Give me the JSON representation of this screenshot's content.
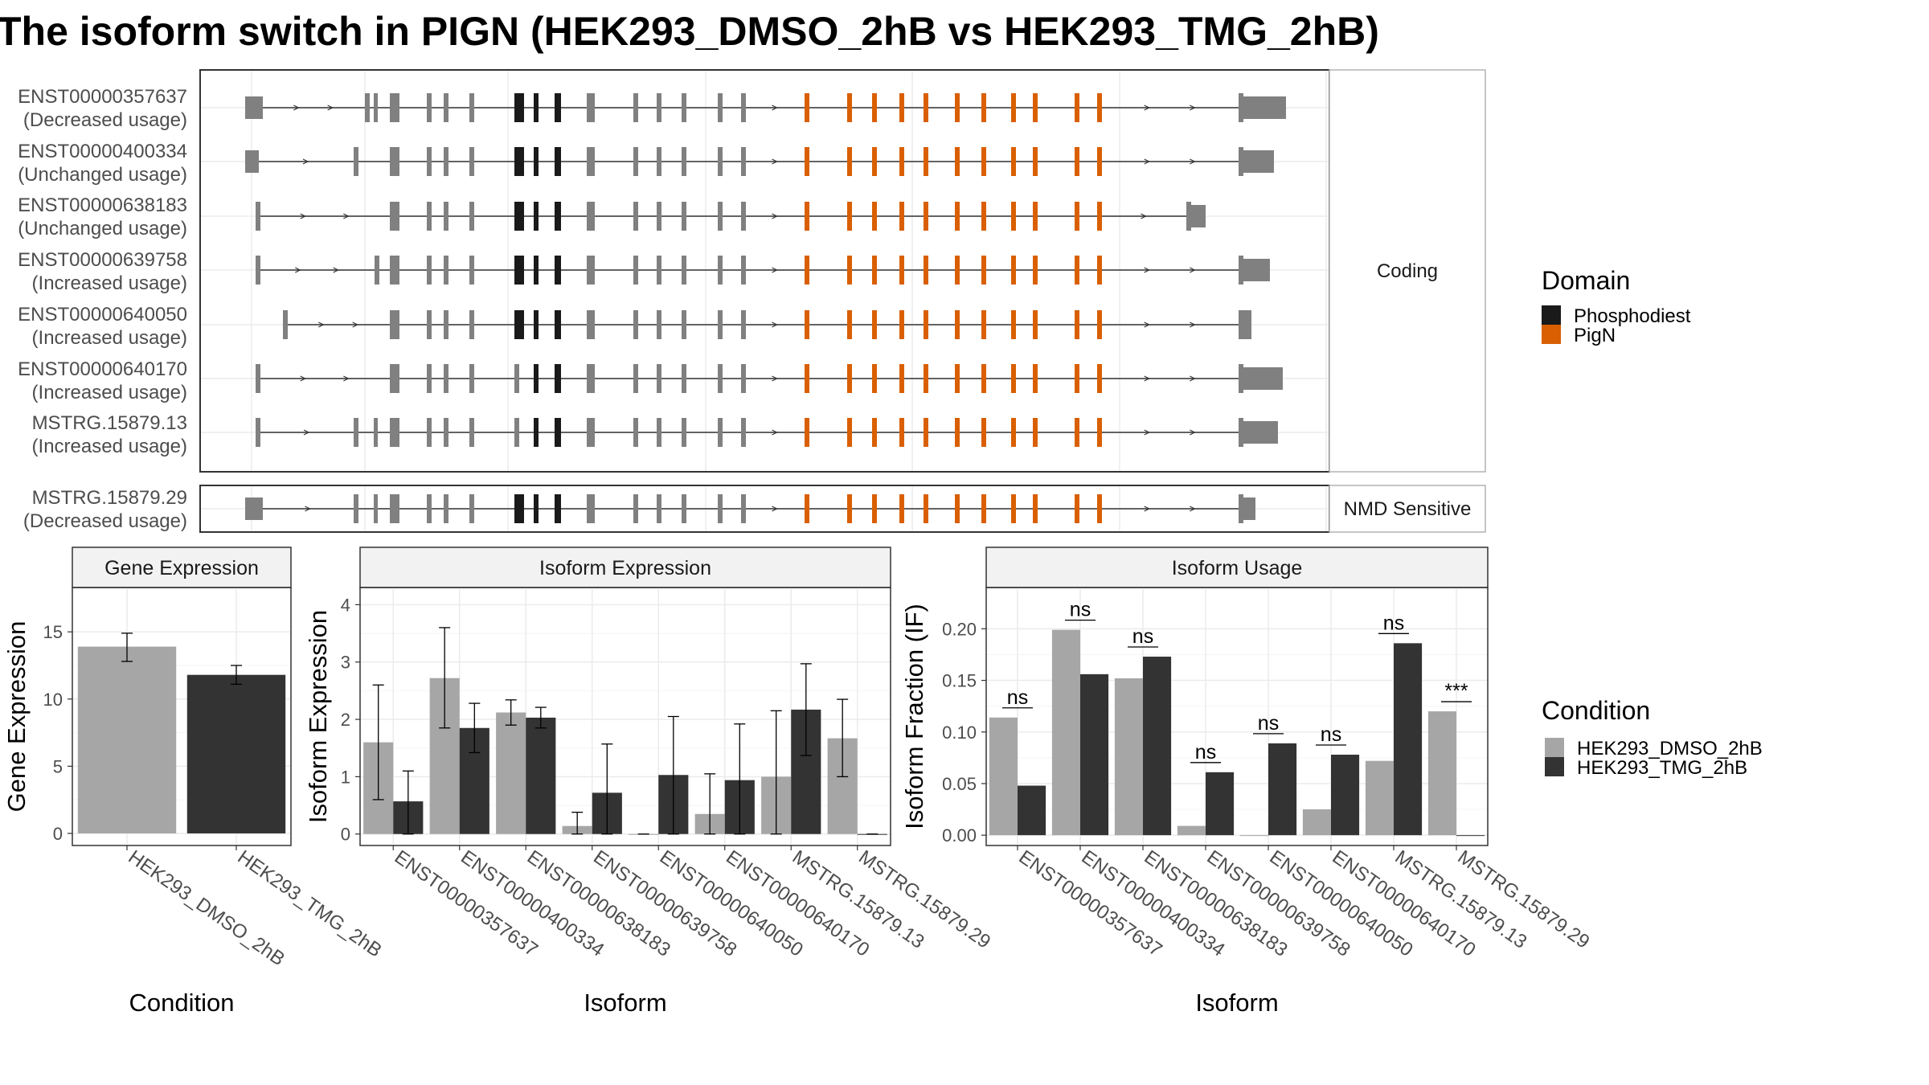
{
  "title": "The isoform switch in PIGN (HEK293_DMSO_2hB vs HEK293_TMG_2hB)",
  "colors": {
    "exon": "#808080",
    "phosphodiest": "#1a1a1a",
    "pign": "#d95f02",
    "dmso": "#a6a6a6",
    "tmg": "#333333",
    "grid": "#ebebeb",
    "strip_bg": "#f2f2f2",
    "panel_border": "#333333"
  },
  "structure_panels": [
    {
      "strip": "Coding",
      "isoform_indices": [
        0,
        1,
        2,
        3,
        4,
        5,
        6
      ]
    },
    {
      "strip": "NMD Sensitive",
      "isoform_indices": [
        7
      ]
    }
  ],
  "isoforms": [
    {
      "id": "ENST00000357637",
      "usage": "(Decreased usage)"
    },
    {
      "id": "ENST00000400334",
      "usage": "(Unchanged usage)"
    },
    {
      "id": "ENST00000638183",
      "usage": "(Unchanged usage)"
    },
    {
      "id": "ENST00000639758",
      "usage": "(Increased usage)"
    },
    {
      "id": "ENST00000640050",
      "usage": "(Increased usage)"
    },
    {
      "id": "ENST00000640170",
      "usage": "(Increased usage)"
    },
    {
      "id": "MSTRG.15879.13",
      "usage": "(Increased usage)"
    },
    {
      "id": "MSTRG.15879.29",
      "usage": "(Decreased usage)"
    }
  ],
  "domain_legend": {
    "title": "Domain",
    "items": [
      {
        "label": "Phosphodiest",
        "color": "#1a1a1a"
      },
      {
        "label": "PigN",
        "color": "#d95f02"
      }
    ]
  },
  "condition_legend": {
    "title": "Condition",
    "items": [
      {
        "label": "HEK293_DMSO_2hB",
        "color": "#a6a6a6"
      },
      {
        "label": "HEK293_TMG_2hB",
        "color": "#333333"
      }
    ]
  },
  "chart_data": [
    {
      "type": "bar",
      "title": "Gene Expression",
      "xlabel": "Condition",
      "ylabel": "Gene Expression",
      "categories": [
        "HEK293_DMSO_2hB",
        "HEK293_TMG_2hB"
      ],
      "values": [
        13.9,
        11.8
      ],
      "error_low": [
        12.8,
        11.1
      ],
      "error_high": [
        14.9,
        12.5
      ],
      "colors": [
        "#a6a6a6",
        "#333333"
      ],
      "yticks": [
        "0",
        "5",
        "10",
        "15"
      ],
      "ylim": [
        -0.9,
        18.3
      ]
    },
    {
      "type": "bar",
      "title": "Isoform Expression",
      "xlabel": "Isoform",
      "ylabel": "Isoform Expression",
      "categories": [
        "ENST00000357637",
        "ENST00000400334",
        "ENST00000638183",
        "ENST00000639758",
        "ENST00000640050",
        "ENST00000640170",
        "MSTRG.15879.13",
        "MSTRG.15879.29"
      ],
      "yticks": [
        "0",
        "1",
        "2",
        "3",
        "4"
      ],
      "ylim": [
        -0.2,
        4.3
      ],
      "series": [
        {
          "name": "HEK293_DMSO_2hB",
          "color": "#a6a6a6",
          "values": [
            1.6,
            2.72,
            2.12,
            0.14,
            0.0,
            0.35,
            1.0,
            1.67
          ],
          "error_low": [
            0.6,
            1.85,
            1.9,
            0.0,
            0.0,
            0.0,
            0.0,
            1.0
          ],
          "error_high": [
            2.6,
            3.6,
            2.34,
            0.38,
            0.0,
            1.05,
            2.15,
            2.35
          ]
        },
        {
          "name": "HEK293_TMG_2hB",
          "color": "#333333",
          "values": [
            0.57,
            1.85,
            2.03,
            0.72,
            1.03,
            0.94,
            2.17,
            0.0
          ],
          "error_low": [
            0.0,
            1.42,
            1.85,
            0.0,
            0.0,
            0.0,
            1.37,
            0.0
          ],
          "error_high": [
            1.1,
            2.28,
            2.21,
            1.57,
            2.05,
            1.92,
            2.97,
            0.0
          ]
        }
      ]
    },
    {
      "type": "bar",
      "title": "Isoform Usage",
      "xlabel": "Isoform",
      "ylabel": "Isoform Fraction (IF)",
      "categories": [
        "ENST00000357637",
        "ENST00000400334",
        "ENST00000638183",
        "ENST00000639758",
        "ENST00000640050",
        "ENST00000640170",
        "MSTRG.15879.13",
        "MSTRG.15879.29"
      ],
      "yticks": [
        "0.00",
        "0.05",
        "0.10",
        "0.15",
        "0.20"
      ],
      "ylim": [
        -0.01,
        0.24
      ],
      "series": [
        {
          "name": "HEK293_DMSO_2hB",
          "color": "#a6a6a6",
          "values": [
            0.114,
            0.199,
            0.152,
            0.009,
            0.0,
            0.025,
            0.072,
            0.12
          ]
        },
        {
          "name": "HEK293_TMG_2hB",
          "color": "#333333",
          "values": [
            0.048,
            0.156,
            0.173,
            0.061,
            0.089,
            0.078,
            0.186,
            0.0
          ]
        }
      ],
      "significance": [
        "ns",
        "ns",
        "ns",
        "ns",
        "ns",
        "ns",
        "ns",
        "***"
      ]
    }
  ]
}
